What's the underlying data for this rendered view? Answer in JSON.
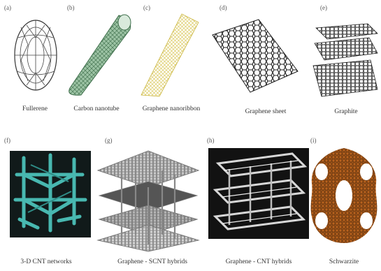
{
  "panels": [
    {
      "letter": "(a)",
      "caption": "Fullerene",
      "icon": "fullerene-icon"
    },
    {
      "letter": "(b)",
      "caption": "Carbon nanotube",
      "icon": "carbon-nanotube-icon"
    },
    {
      "letter": "(c)",
      "caption": "Graphene nanoribbon",
      "icon": "graphene-nanoribbon-icon"
    },
    {
      "letter": "(d)",
      "caption": "Graphene sheet",
      "icon": "graphene-sheet-icon"
    },
    {
      "letter": "(e)",
      "caption": "Graphite",
      "icon": "graphite-icon"
    },
    {
      "letter": "(f)",
      "caption": "3-D CNT networks",
      "icon": "cnt-network-icon"
    },
    {
      "letter": "(g)",
      "caption": "Graphene - SCNT hybrids",
      "icon": "graphene-scnt-hybrid-icon"
    },
    {
      "letter": "(h)",
      "caption": "Graphene - CNT hybrids",
      "icon": "graphene-cnt-hybrid-icon"
    },
    {
      "letter": "(i)",
      "caption": "Schwarzite",
      "icon": "schwarzite-icon"
    }
  ],
  "colors": {
    "line": "#333333",
    "nanotube": "#6f9a78",
    "ribbon": "#d6c24a",
    "network_bg": "#111a1a",
    "network": "#48b8b0",
    "hybrid_bg": "#121212",
    "schwarzite": "#b8621e"
  }
}
